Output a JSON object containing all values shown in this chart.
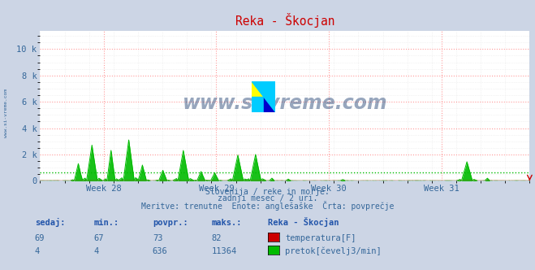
{
  "title": "Reka - Škocjan",
  "background_color": "#ccd5e5",
  "plot_bg_color": "#ffffff",
  "grid_color": "#ff9999",
  "grid_color_minor": "#e8e8e8",
  "x_tick_labels": [
    "Week 28",
    "Week 29",
    "Week 30",
    "Week 31"
  ],
  "ylim": [
    0,
    11364
  ],
  "y_ticks": [
    0,
    2000,
    4000,
    6000,
    8000,
    10000
  ],
  "y_tick_labels": [
    "0",
    "2 k",
    "4 k",
    "6 k",
    "8 k",
    "10 k"
  ],
  "subtitle_lines": [
    "Slovenija / reke in morje.",
    "zadnji mesec / 2 uri.",
    "Meritve: trenutne  Enote: anglešaške  Črta: povprečje"
  ],
  "table_headers": [
    "sedaj:",
    "min.:",
    "povpr.:",
    "maks.:",
    "Reka - Škocjan"
  ],
  "table_row1": [
    "69",
    "67",
    "73",
    "82",
    "temperatura[F]"
  ],
  "table_row2": [
    "4",
    "4",
    "636",
    "11364",
    "pretok[čevelj3/min]"
  ],
  "color_temp": "#cc0000",
  "color_flow": "#00bb00",
  "watermark": "www.si-vreme.com",
  "n_points": 360,
  "flow_avg": 636,
  "temp_avg_scaled": 0,
  "icon_yellow": "#ffff00",
  "icon_cyan": "#00ccff",
  "icon_blue": "#0000cc",
  "text_color": "#336699",
  "header_color": "#2255aa"
}
